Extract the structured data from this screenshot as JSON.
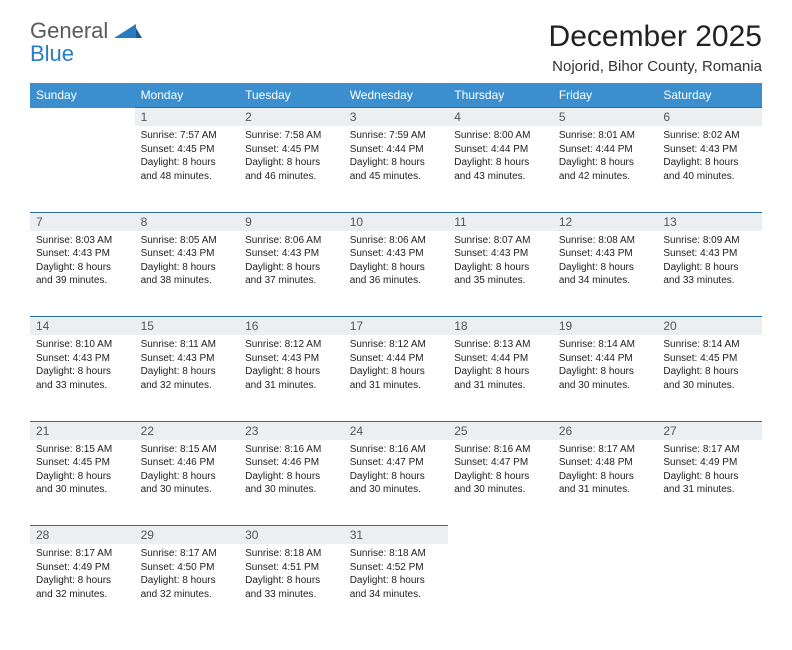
{
  "logo": {
    "general": "General",
    "blue": "Blue"
  },
  "title": "December 2025",
  "location": "Nojorid, Bihor County, Romania",
  "colors": {
    "header_bg": "#3b8fcf",
    "header_text": "#ffffff",
    "daynum_bg": "#eceff1",
    "row_border": "#2a6da3",
    "logo_gray": "#5a5a5a",
    "logo_blue": "#2a7bbf"
  },
  "weekdays": [
    "Sunday",
    "Monday",
    "Tuesday",
    "Wednesday",
    "Thursday",
    "Friday",
    "Saturday"
  ],
  "weeks": [
    [
      null,
      {
        "n": "1",
        "sr": "7:57 AM",
        "ss": "4:45 PM",
        "dl": "8 hours and 48 minutes."
      },
      {
        "n": "2",
        "sr": "7:58 AM",
        "ss": "4:45 PM",
        "dl": "8 hours and 46 minutes."
      },
      {
        "n": "3",
        "sr": "7:59 AM",
        "ss": "4:44 PM",
        "dl": "8 hours and 45 minutes."
      },
      {
        "n": "4",
        "sr": "8:00 AM",
        "ss": "4:44 PM",
        "dl": "8 hours and 43 minutes."
      },
      {
        "n": "5",
        "sr": "8:01 AM",
        "ss": "4:44 PM",
        "dl": "8 hours and 42 minutes."
      },
      {
        "n": "6",
        "sr": "8:02 AM",
        "ss": "4:43 PM",
        "dl": "8 hours and 40 minutes."
      }
    ],
    [
      {
        "n": "7",
        "sr": "8:03 AM",
        "ss": "4:43 PM",
        "dl": "8 hours and 39 minutes."
      },
      {
        "n": "8",
        "sr": "8:05 AM",
        "ss": "4:43 PM",
        "dl": "8 hours and 38 minutes."
      },
      {
        "n": "9",
        "sr": "8:06 AM",
        "ss": "4:43 PM",
        "dl": "8 hours and 37 minutes."
      },
      {
        "n": "10",
        "sr": "8:06 AM",
        "ss": "4:43 PM",
        "dl": "8 hours and 36 minutes."
      },
      {
        "n": "11",
        "sr": "8:07 AM",
        "ss": "4:43 PM",
        "dl": "8 hours and 35 minutes."
      },
      {
        "n": "12",
        "sr": "8:08 AM",
        "ss": "4:43 PM",
        "dl": "8 hours and 34 minutes."
      },
      {
        "n": "13",
        "sr": "8:09 AM",
        "ss": "4:43 PM",
        "dl": "8 hours and 33 minutes."
      }
    ],
    [
      {
        "n": "14",
        "sr": "8:10 AM",
        "ss": "4:43 PM",
        "dl": "8 hours and 33 minutes."
      },
      {
        "n": "15",
        "sr": "8:11 AM",
        "ss": "4:43 PM",
        "dl": "8 hours and 32 minutes."
      },
      {
        "n": "16",
        "sr": "8:12 AM",
        "ss": "4:43 PM",
        "dl": "8 hours and 31 minutes."
      },
      {
        "n": "17",
        "sr": "8:12 AM",
        "ss": "4:44 PM",
        "dl": "8 hours and 31 minutes."
      },
      {
        "n": "18",
        "sr": "8:13 AM",
        "ss": "4:44 PM",
        "dl": "8 hours and 31 minutes."
      },
      {
        "n": "19",
        "sr": "8:14 AM",
        "ss": "4:44 PM",
        "dl": "8 hours and 30 minutes."
      },
      {
        "n": "20",
        "sr": "8:14 AM",
        "ss": "4:45 PM",
        "dl": "8 hours and 30 minutes."
      }
    ],
    [
      {
        "n": "21",
        "sr": "8:15 AM",
        "ss": "4:45 PM",
        "dl": "8 hours and 30 minutes."
      },
      {
        "n": "22",
        "sr": "8:15 AM",
        "ss": "4:46 PM",
        "dl": "8 hours and 30 minutes."
      },
      {
        "n": "23",
        "sr": "8:16 AM",
        "ss": "4:46 PM",
        "dl": "8 hours and 30 minutes."
      },
      {
        "n": "24",
        "sr": "8:16 AM",
        "ss": "4:47 PM",
        "dl": "8 hours and 30 minutes."
      },
      {
        "n": "25",
        "sr": "8:16 AM",
        "ss": "4:47 PM",
        "dl": "8 hours and 30 minutes."
      },
      {
        "n": "26",
        "sr": "8:17 AM",
        "ss": "4:48 PM",
        "dl": "8 hours and 31 minutes."
      },
      {
        "n": "27",
        "sr": "8:17 AM",
        "ss": "4:49 PM",
        "dl": "8 hours and 31 minutes."
      }
    ],
    [
      {
        "n": "28",
        "sr": "8:17 AM",
        "ss": "4:49 PM",
        "dl": "8 hours and 32 minutes."
      },
      {
        "n": "29",
        "sr": "8:17 AM",
        "ss": "4:50 PM",
        "dl": "8 hours and 32 minutes."
      },
      {
        "n": "30",
        "sr": "8:18 AM",
        "ss": "4:51 PM",
        "dl": "8 hours and 33 minutes."
      },
      {
        "n": "31",
        "sr": "8:18 AM",
        "ss": "4:52 PM",
        "dl": "8 hours and 34 minutes."
      },
      null,
      null,
      null
    ]
  ],
  "labels": {
    "sunrise": "Sunrise:",
    "sunset": "Sunset:",
    "daylight": "Daylight:"
  }
}
